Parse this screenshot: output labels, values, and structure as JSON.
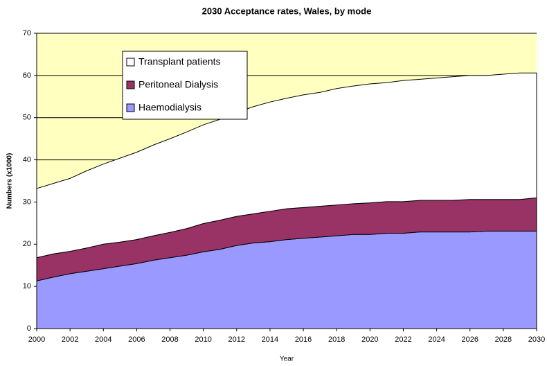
{
  "chart_data": {
    "type": "stacked_area",
    "title": "2030 Acceptance rates, Wales, by mode",
    "x_label": "Year",
    "y_label": "Numbers (x1000)",
    "x": [
      2000,
      2001,
      2002,
      2003,
      2004,
      2005,
      2006,
      2007,
      2008,
      2009,
      2010,
      2011,
      2012,
      2013,
      2014,
      2015,
      2016,
      2017,
      2018,
      2019,
      2020,
      2021,
      2022,
      2023,
      2024,
      2025,
      2026,
      2027,
      2028,
      2029,
      2030
    ],
    "series": [
      {
        "name": "Haemodialysis",
        "color": "#9999ff",
        "values": [
          11.3,
          12.2,
          13.0,
          13.6,
          14.2,
          14.8,
          15.4,
          16.2,
          16.8,
          17.4,
          18.2,
          18.8,
          19.7,
          20.3,
          20.6,
          21.1,
          21.4,
          21.7,
          22.0,
          22.3,
          22.3,
          22.6,
          22.6,
          22.9,
          22.9,
          22.9,
          22.9,
          23.1,
          23.1,
          23.1,
          23.1
        ]
      },
      {
        "name": "Peritoneal Dialysis",
        "color": "#993366",
        "values": [
          5.5,
          5.5,
          5.3,
          5.5,
          5.8,
          5.7,
          5.7,
          5.8,
          6.0,
          6.3,
          6.7,
          6.9,
          6.9,
          6.9,
          7.2,
          7.3,
          7.3,
          7.3,
          7.3,
          7.3,
          7.5,
          7.5,
          7.5,
          7.5,
          7.5,
          7.5,
          7.7,
          7.5,
          7.5,
          7.5,
          7.9
        ]
      },
      {
        "name": "Transplant patients",
        "color": "#ffffff",
        "values": [
          16.4,
          16.7,
          17.3,
          18.3,
          19.0,
          19.9,
          20.7,
          21.5,
          22.2,
          22.9,
          23.4,
          23.9,
          24.6,
          25.4,
          25.9,
          26.2,
          26.7,
          27.0,
          27.6,
          27.9,
          28.2,
          28.2,
          28.7,
          28.7,
          29.0,
          29.3,
          29.4,
          29.4,
          29.7,
          30.0,
          29.6
        ]
      }
    ],
    "xlim": [
      2000,
      2030
    ],
    "xticks": [
      2000,
      2002,
      2004,
      2006,
      2008,
      2010,
      2012,
      2014,
      2016,
      2018,
      2020,
      2022,
      2024,
      2026,
      2028,
      2030
    ],
    "ylim": [
      0,
      70
    ],
    "yticks": [
      0,
      10,
      20,
      30,
      40,
      50,
      60,
      70
    ],
    "grid": true,
    "plot_background": "#ffffc0",
    "legend": "upper-left"
  }
}
